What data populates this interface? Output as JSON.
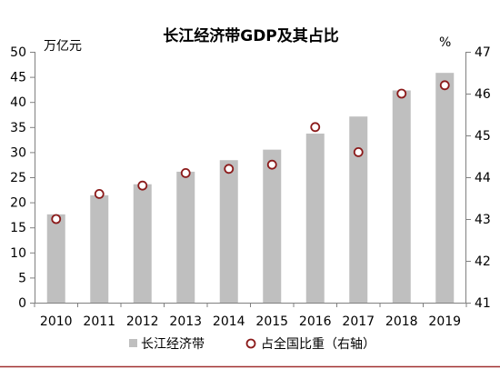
{
  "chart_data": {
    "type": "bar",
    "title": "长江经济带GDP及其占比",
    "categories": [
      "2010",
      "2011",
      "2012",
      "2013",
      "2014",
      "2015",
      "2016",
      "2017",
      "2018",
      "2019"
    ],
    "y_axis": {
      "label": "万亿元",
      "range": [
        0,
        50
      ],
      "ticks": [
        0,
        5,
        10,
        15,
        20,
        25,
        30,
        35,
        40,
        45,
        50
      ]
    },
    "y2_axis": {
      "label": "%",
      "range": [
        41,
        47
      ],
      "ticks": [
        41,
        42,
        43,
        44,
        45,
        46,
        47
      ]
    },
    "series": [
      {
        "name": "长江经济带",
        "type": "bar",
        "axis": "left",
        "color": "#bfbfbf",
        "values": [
          17.6,
          21.4,
          23.6,
          26.1,
          28.4,
          30.5,
          33.7,
          37.1,
          42.3,
          45.8
        ]
      },
      {
        "name": "占全国比重（右轴）",
        "type": "scatter",
        "axis": "right",
        "color": "#8b1a1a",
        "values": [
          43.0,
          43.6,
          43.8,
          44.1,
          44.2,
          44.3,
          45.2,
          44.6,
          46.0,
          46.2
        ]
      }
    ],
    "legend": "bottom",
    "grid": false
  }
}
